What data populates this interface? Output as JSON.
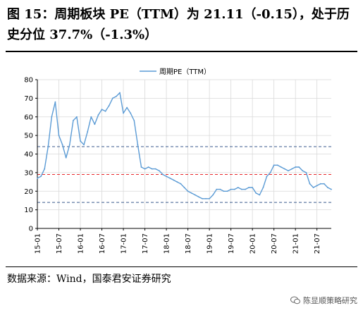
{
  "title": "图 15：周期板块 PE（TTM）为 21.11（-0.15），处于历史分位 37.7%（-1.3%）",
  "source": "数据来源：Wind，国泰君安证券研究",
  "watermark": "陈显顺策略研究",
  "colors": {
    "series": "#5b9bd5",
    "ref_blue": "#3a5a8c",
    "ref_red": "#e8282b",
    "grid": "#d9d9d9"
  },
  "chart_data": {
    "type": "line",
    "xlabel": "",
    "ylabel": "",
    "ylim": [
      0,
      80
    ],
    "yticks": [
      0,
      10,
      20,
      30,
      40,
      50,
      60,
      70,
      80
    ],
    "xticks": [
      "15-01",
      "15-07",
      "16-01",
      "16-07",
      "17-01",
      "17-07",
      "18-01",
      "18-07",
      "19-01",
      "19-07",
      "20-01",
      "20-07",
      "21-01",
      "21-07"
    ],
    "x_start": "2015-01",
    "x_end": "2021-11",
    "grid": true,
    "legend_position": "top-left",
    "reference_lines": [
      {
        "value": 44,
        "color": "#3a5a8c",
        "style": "dashed"
      },
      {
        "value": 29,
        "color": "#e8282b",
        "style": "dashed"
      },
      {
        "value": 14,
        "color": "#3a5a8c",
        "style": "dashed"
      }
    ],
    "series": [
      {
        "name": "周期PE（TTM）",
        "points": [
          [
            "2015-01",
            27
          ],
          [
            "2015-02",
            28
          ],
          [
            "2015-03",
            32
          ],
          [
            "2015-04",
            44
          ],
          [
            "2015-05",
            60
          ],
          [
            "2015-06",
            68
          ],
          [
            "2015-07",
            50
          ],
          [
            "2015-08",
            45
          ],
          [
            "2015-09",
            38
          ],
          [
            "2015-10",
            45
          ],
          [
            "2015-11",
            58
          ],
          [
            "2015-12",
            60
          ],
          [
            "2016-01",
            47
          ],
          [
            "2016-02",
            45
          ],
          [
            "2016-03",
            52
          ],
          [
            "2016-04",
            60
          ],
          [
            "2016-05",
            56
          ],
          [
            "2016-06",
            61
          ],
          [
            "2016-07",
            64
          ],
          [
            "2016-08",
            63
          ],
          [
            "2016-09",
            66
          ],
          [
            "2016-10",
            70
          ],
          [
            "2016-11",
            71
          ],
          [
            "2016-12",
            73
          ],
          [
            "2017-01",
            62
          ],
          [
            "2017-02",
            65
          ],
          [
            "2017-03",
            62
          ],
          [
            "2017-04",
            58
          ],
          [
            "2017-05",
            45
          ],
          [
            "2017-06",
            33
          ],
          [
            "2017-07",
            32
          ],
          [
            "2017-08",
            33
          ],
          [
            "2017-09",
            32
          ],
          [
            "2017-10",
            32
          ],
          [
            "2017-11",
            31
          ],
          [
            "2017-12",
            29
          ],
          [
            "2018-01",
            28
          ],
          [
            "2018-02",
            27
          ],
          [
            "2018-03",
            26
          ],
          [
            "2018-04",
            25
          ],
          [
            "2018-05",
            24
          ],
          [
            "2018-06",
            22
          ],
          [
            "2018-07",
            20
          ],
          [
            "2018-08",
            19
          ],
          [
            "2018-09",
            18
          ],
          [
            "2018-10",
            17
          ],
          [
            "2018-11",
            16
          ],
          [
            "2018-12",
            16
          ],
          [
            "2019-01",
            16
          ],
          [
            "2019-02",
            18
          ],
          [
            "2019-03",
            21
          ],
          [
            "2019-04",
            21
          ],
          [
            "2019-05",
            20
          ],
          [
            "2019-06",
            20
          ],
          [
            "2019-07",
            21
          ],
          [
            "2019-08",
            21
          ],
          [
            "2019-09",
            22
          ],
          [
            "2019-10",
            21
          ],
          [
            "2019-11",
            21
          ],
          [
            "2019-12",
            22
          ],
          [
            "2020-01",
            22
          ],
          [
            "2020-02",
            19
          ],
          [
            "2020-03",
            18
          ],
          [
            "2020-04",
            22
          ],
          [
            "2020-05",
            28
          ],
          [
            "2020-06",
            30
          ],
          [
            "2020-07",
            34
          ],
          [
            "2020-08",
            34
          ],
          [
            "2020-09",
            33
          ],
          [
            "2020-10",
            32
          ],
          [
            "2020-11",
            31
          ],
          [
            "2020-12",
            32
          ],
          [
            "2021-01",
            33
          ],
          [
            "2021-02",
            33
          ],
          [
            "2021-03",
            31
          ],
          [
            "2021-04",
            30
          ],
          [
            "2021-05",
            24
          ],
          [
            "2021-06",
            22
          ],
          [
            "2021-07",
            23
          ],
          [
            "2021-08",
            24
          ],
          [
            "2021-09",
            24
          ],
          [
            "2021-10",
            22
          ],
          [
            "2021-11",
            21
          ]
        ]
      }
    ]
  }
}
